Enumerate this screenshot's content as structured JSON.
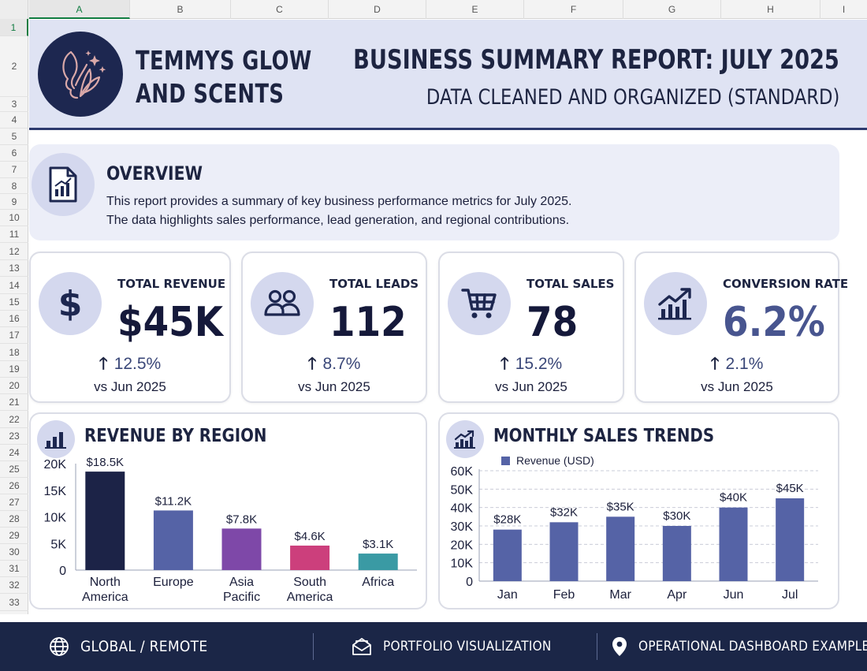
{
  "spreadsheet": {
    "columns": [
      "A",
      "B",
      "C",
      "D",
      "E",
      "F",
      "G",
      "H",
      "I"
    ],
    "rows": [
      "1",
      "2",
      "3",
      "4",
      "5",
      "6",
      "7",
      "8",
      "9",
      "10",
      "11",
      "12",
      "13",
      "14",
      "15",
      "16",
      "17",
      "18",
      "19",
      "20",
      "21",
      "22",
      "23",
      "24",
      "25",
      "26",
      "27",
      "28",
      "29",
      "30",
      "31",
      "32",
      "33"
    ]
  },
  "header": {
    "brand_line1": "TEMMYS GLOW",
    "brand_line2": "AND SCENTS",
    "title": "BUSINESS SUMMARY REPORT: JULY 2025",
    "subtitle": "DATA CLEANED AND ORGANIZED (STANDARD)"
  },
  "overview": {
    "title": "OVERVIEW",
    "line1": "This report provides a summary of key business performance metrics for July 2025.",
    "line2": "The data highlights sales performance, lead generation, and regional contributions."
  },
  "kpis": [
    {
      "label": "TOTAL REVENUE",
      "value": "$45K",
      "delta": "12.5%",
      "compare": "vs Jun 2025",
      "icon": "dollar-icon"
    },
    {
      "label": "TOTAL LEADS",
      "value": "112",
      "delta": "8.7%",
      "compare": "vs Jun 2025",
      "icon": "users-icon"
    },
    {
      "label": "TOTAL SALES",
      "value": "78",
      "delta": "15.2%",
      "compare": "vs Jun 2025",
      "icon": "cart-icon"
    },
    {
      "label": "CONVERSION RATE",
      "value": "6.2%",
      "delta": "2.1%",
      "compare": "vs Jun 2025",
      "icon": "trend-chart-icon"
    }
  ],
  "chart_data": [
    {
      "type": "bar",
      "title": "REVENUE BY REGION",
      "categories": [
        [
          "North",
          "America"
        ],
        [
          "Europe"
        ],
        [
          "Asia",
          "Pacific"
        ],
        [
          "South",
          "America"
        ],
        [
          "Africa"
        ]
      ],
      "values": [
        18500,
        11200,
        7800,
        4600,
        3100
      ],
      "data_labels": [
        "$18.5K",
        "$11.2K",
        "$7.8K",
        "$4.6K",
        "$3.1K"
      ],
      "colors": [
        "#1c2347",
        "#5563a6",
        "#7e48a8",
        "#cc3f7c",
        "#3a9aa4"
      ],
      "ylim": [
        0,
        20000
      ],
      "yticks": [
        0,
        5000,
        10000,
        15000,
        20000
      ],
      "ytick_labels": [
        "0",
        "5K",
        "10K",
        "15K",
        "20K"
      ],
      "grid": false
    },
    {
      "type": "bar",
      "title": "MONTHLY SALES TRENDS",
      "categories": [
        "Jan",
        "Feb",
        "Mar",
        "Apr",
        "Jun",
        "Jul"
      ],
      "series": [
        {
          "name": "Revenue (USD)",
          "values": [
            28000,
            32000,
            35000,
            30000,
            40000,
            45000
          ]
        }
      ],
      "data_labels": [
        "$28K",
        "$32K",
        "$35K",
        "$30K",
        "$40K",
        "$45K"
      ],
      "color": "#5563a6",
      "ylim": [
        0,
        60000
      ],
      "yticks": [
        0,
        10000,
        20000,
        30000,
        40000,
        50000,
        60000
      ],
      "ytick_labels": [
        "0",
        "10K",
        "20K",
        "30K",
        "40K",
        "50K",
        "60K"
      ],
      "grid": true,
      "legend_position": "top-left"
    }
  ],
  "footer": {
    "item1": "GLOBAL / REMOTE",
    "item2": "PORTFOLIO VISUALIZATION",
    "item3": "OPERATIONAL DASHBOARD EXAMPLE"
  }
}
